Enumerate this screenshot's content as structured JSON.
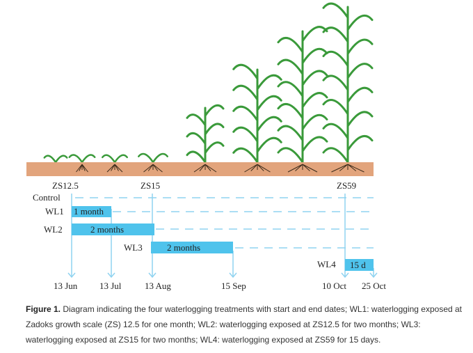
{
  "diagram": {
    "stages": [
      "ZS12.5",
      "ZS15",
      "ZS59"
    ],
    "rows": [
      "Control",
      "WL1",
      "WL2",
      "WL3",
      "WL4"
    ],
    "bars": [
      "1 month",
      "2 months",
      "2 months",
      "15 d"
    ],
    "dates": [
      "13 Jun",
      "13 Jul",
      "13 Aug",
      "15 Sep",
      "10 Oct",
      "25 Oct"
    ],
    "colors": {
      "bar": "#4fc3ec",
      "line": "#8fd3f0",
      "soil": "#e2a47c",
      "plant": "#3a9a3a"
    }
  },
  "caption": {
    "label": "Figure 1.",
    "text": " Diagram indicating the four waterlogging treatments with start and end dates; WL1: waterlogging exposed at Zadoks growth scale (ZS) 12.5 for one month; WL2: waterlogging exposed at ZS12.5 for two months; WL3: waterlogging exposed at ZS15 for two months; WL4: waterlogging exposed at ZS59 for 15 days."
  }
}
